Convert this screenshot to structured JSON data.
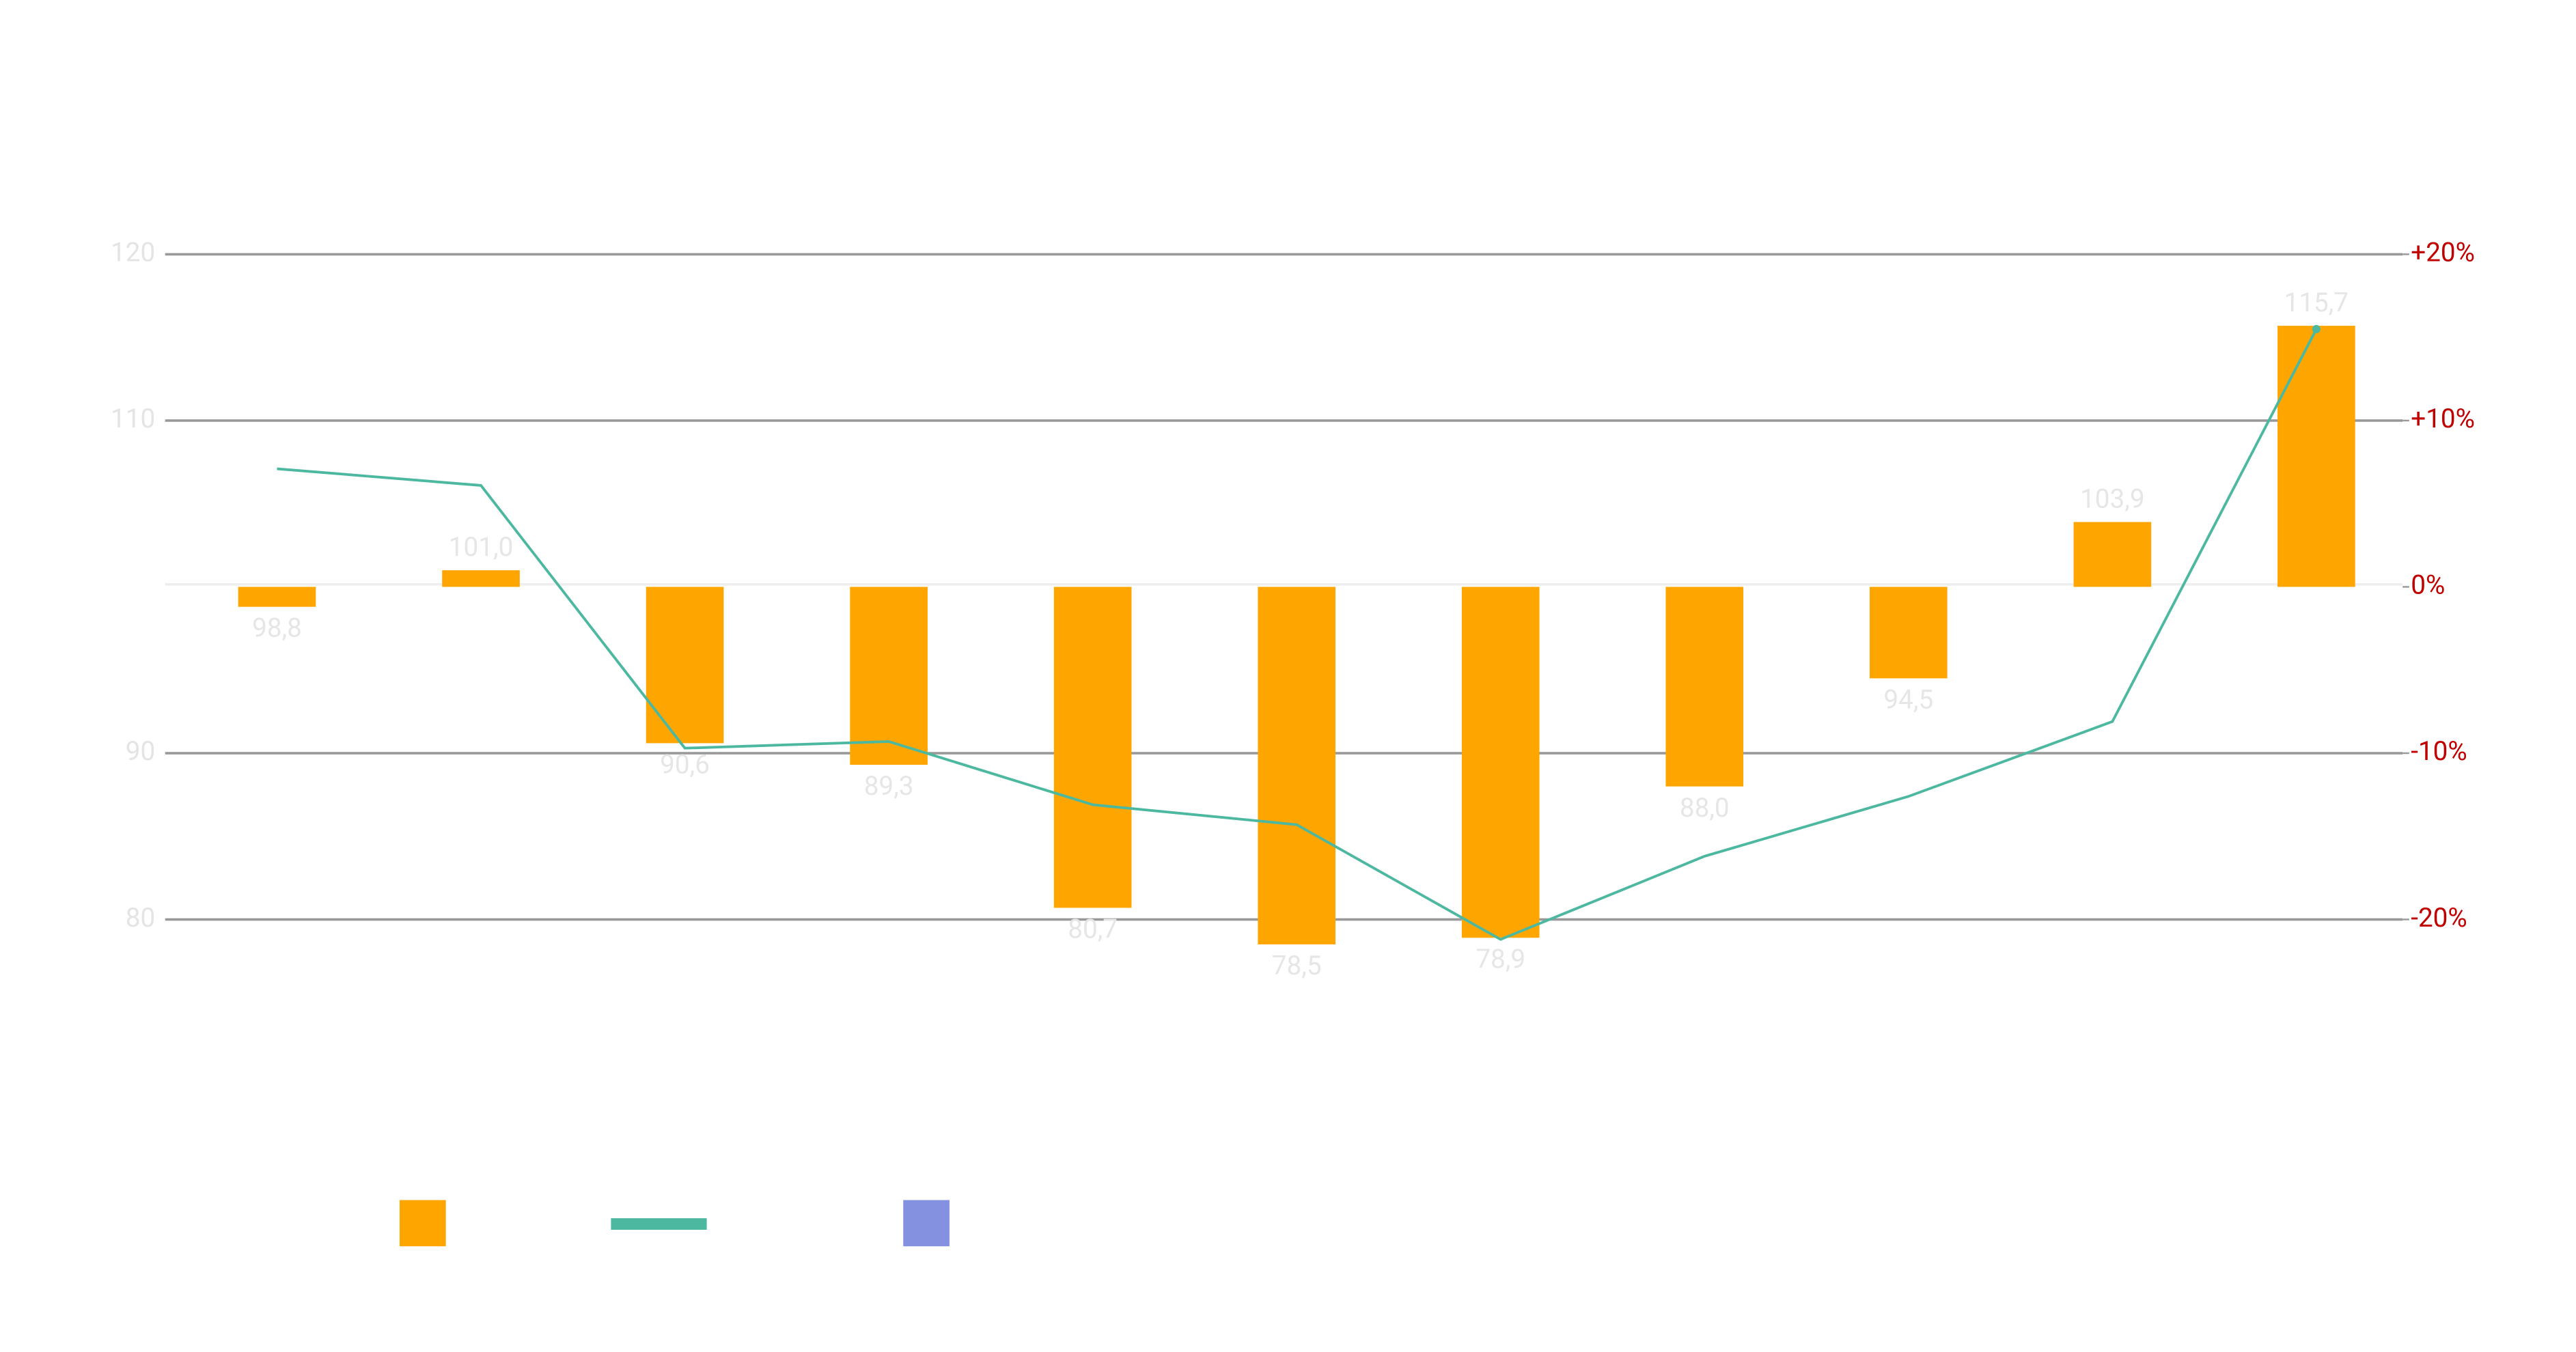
{
  "chart_data": {
    "type": "bar",
    "series": [
      {
        "type": "bar",
        "color": "#ffa500",
        "values": [
          98.8,
          101.0,
          90.6,
          89.3,
          80.7,
          78.5,
          78.9,
          88.0,
          94.5,
          103.9,
          115.7
        ],
        "value_labels": [
          "98,8",
          "101,0",
          "90,6",
          "89,3",
          "80,7",
          "78,5",
          "78,9",
          "88,0",
          "94,5",
          "103,9",
          "115,7"
        ]
      },
      {
        "type": "line",
        "axis": "y2",
        "color": "#4db8a0",
        "values": [
          7.1,
          6.1,
          -9.7,
          -9.3,
          -13.1,
          -14.3,
          -21.2,
          -16.2,
          -12.6,
          -8.1,
          15.5
        ]
      }
    ],
    "ylim": [
      80,
      120
    ],
    "yticks": [
      80,
      90,
      110,
      120
    ],
    "y2lim": [
      -20,
      20
    ],
    "y2ticks": [
      {
        "value": -20,
        "label": "-20%"
      },
      {
        "value": -10,
        "label": "-10%"
      },
      {
        "value": 0,
        "label": "0%"
      },
      {
        "value": 10,
        "label": "+10%"
      },
      {
        "value": 20,
        "label": "+20%"
      }
    ],
    "grid": true
  }
}
